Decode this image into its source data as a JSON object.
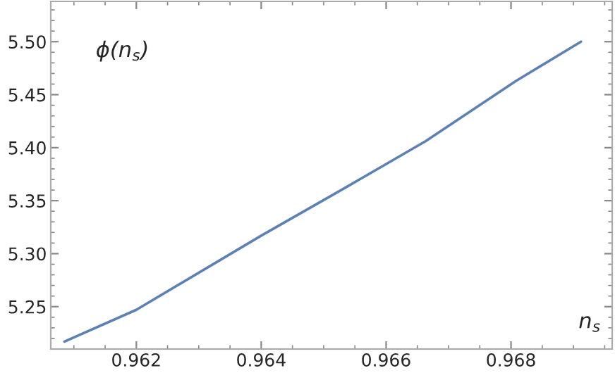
{
  "chart_data": {
    "type": "line",
    "xlabel": "n$_{s}$",
    "ylabel": "ϕ(n$_{s}$)",
    "x": [
      0.96085,
      0.962,
      0.964,
      0.96528,
      0.96663,
      0.96808,
      0.96912
    ],
    "series": [
      {
        "color": "#5e81b5",
        "values": [
          5.217,
          5.247,
          5.317,
          5.36,
          5.406,
          5.463,
          5.5
        ]
      }
    ],
    "xlim": [
      0.96063,
      0.96962
    ],
    "ylim": [
      5.21,
      5.538
    ],
    "xticks": [
      0.962,
      0.964,
      0.966,
      0.968
    ],
    "yticks": [
      {
        "value": 5.25,
        "label": "5.25"
      },
      {
        "value": 5.3,
        "label": "5.30"
      },
      {
        "value": 5.35,
        "label": "5.35"
      },
      {
        "value": 5.4,
        "label": "5.40"
      },
      {
        "value": 5.45,
        "label": "5.45"
      },
      {
        "value": 5.5,
        "label": "5.50"
      }
    ],
    "grid": false,
    "legend": false,
    "marker": "none",
    "line_style": "solid"
  }
}
